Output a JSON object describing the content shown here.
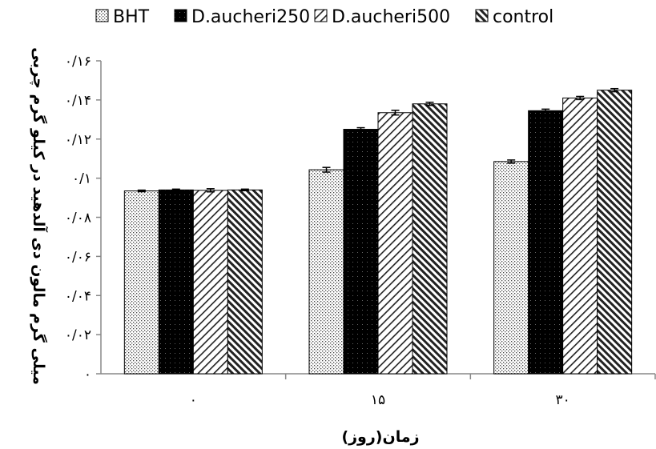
{
  "chart_data": {
    "type": "bar",
    "title": "",
    "xlabel": "زمان(روز)",
    "ylabel": "میلی گرم مالون دی آلدهید در کیلو گرم چربی",
    "categories": [
      "۰",
      "۱۵",
      "۳۰"
    ],
    "y_ticks": [
      "۰",
      "۰/۰۲",
      "۰/۰۴",
      "۰/۰۶",
      "۰/۰۸",
      "۰/۱",
      "۰/۱۲",
      "۰/۱۴",
      "۰/۱۶"
    ],
    "ylim": [
      0,
      0.16
    ],
    "grid": false,
    "legend_position": "top",
    "series": [
      {
        "name": "BHT",
        "values": [
          0.0935,
          0.1043,
          0.1085
        ],
        "errors": [
          0.0004,
          0.0012,
          0.0008
        ],
        "pattern": "dots"
      },
      {
        "name": "D.aucheri250",
        "values": [
          0.094,
          0.125,
          0.1345
        ],
        "errors": [
          0.0004,
          0.0008,
          0.0008
        ],
        "pattern": "solid"
      },
      {
        "name": "D.aucheri500",
        "values": [
          0.0938,
          0.1335,
          0.141
        ],
        "errors": [
          0.0008,
          0.0012,
          0.0008
        ],
        "pattern": "sparse-diag"
      },
      {
        "name": "control",
        "values": [
          0.094,
          0.138,
          0.145
        ],
        "errors": [
          0.0004,
          0.0008,
          0.0008
        ],
        "pattern": "dense-diag"
      }
    ]
  }
}
